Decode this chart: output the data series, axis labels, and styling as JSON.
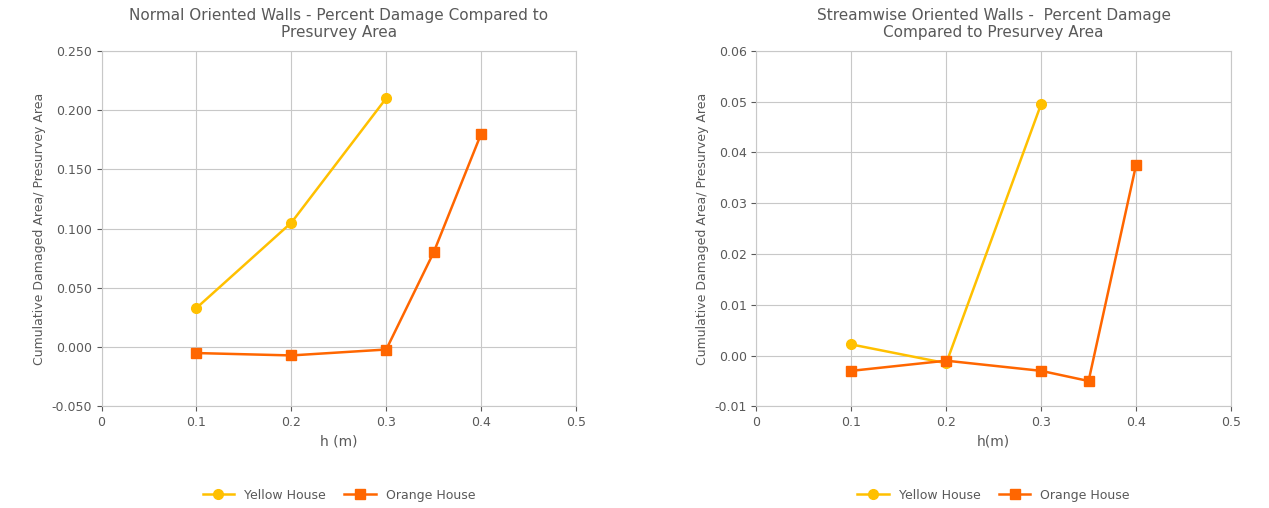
{
  "left": {
    "title": "Normal Oriented Walls - Percent Damage Compared to\nPresurvey Area",
    "xlabel": "h (m)",
    "ylabel": "Cumulative Damaged Area/ Presurvey Area",
    "xlim": [
      0,
      0.5
    ],
    "ylim": [
      -0.05,
      0.25
    ],
    "yticks": [
      -0.05,
      0.0,
      0.05,
      0.1,
      0.15,
      0.2,
      0.25
    ],
    "ytick_labels": [
      "-0.050",
      "0.000",
      "0.050",
      "0.100",
      "0.150",
      "0.200",
      "0.250"
    ],
    "xticks": [
      0,
      0.1,
      0.2,
      0.3,
      0.4,
      0.5
    ],
    "xtick_labels": [
      "0",
      "0.1",
      "0.2",
      "0.3",
      "0.4",
      "0.5"
    ],
    "yellow_x": [
      0.1,
      0.2,
      0.3
    ],
    "yellow_y": [
      0.033,
      0.105,
      0.21
    ],
    "orange_x": [
      0.1,
      0.2,
      0.3,
      0.35,
      0.4
    ],
    "orange_y": [
      -0.005,
      -0.007,
      -0.002,
      0.08,
      0.18
    ]
  },
  "right": {
    "title": "Streamwise Oriented Walls -  Percent Damage\nCompared to Presurvey Area",
    "xlabel": "h(m)",
    "ylabel": "Cumulative Damaged Area/ Presurvey Area",
    "xlim": [
      0,
      0.5
    ],
    "ylim": [
      -0.01,
      0.06
    ],
    "yticks": [
      -0.01,
      0.0,
      0.01,
      0.02,
      0.03,
      0.04,
      0.05,
      0.06
    ],
    "ytick_labels": [
      "-0.01",
      "0.00",
      "0.01",
      "0.02",
      "0.03",
      "0.04",
      "0.05",
      "0.06"
    ],
    "xticks": [
      0,
      0.1,
      0.2,
      0.3,
      0.4,
      0.5
    ],
    "xtick_labels": [
      "0",
      "0.1",
      "0.2",
      "0.3",
      "0.4",
      "0.5"
    ],
    "yellow_x": [
      0.1,
      0.2,
      0.3
    ],
    "yellow_y": [
      0.0022,
      -0.0015,
      0.0495
    ],
    "orange_x": [
      0.1,
      0.2,
      0.3,
      0.35,
      0.4
    ],
    "orange_y": [
      -0.003,
      -0.001,
      -0.003,
      -0.005,
      0.0375
    ]
  },
  "yellow_color": "#FFC000",
  "orange_color": "#FF6600",
  "marker_yellow": "o",
  "marker_orange": "s",
  "legend_yellow": "Yellow House",
  "legend_orange": "Orange House",
  "bg_color": "#FFFFFF",
  "grid_color": "#C8C8C8",
  "title_color": "#595959",
  "label_color": "#595959",
  "tick_color": "#595959"
}
